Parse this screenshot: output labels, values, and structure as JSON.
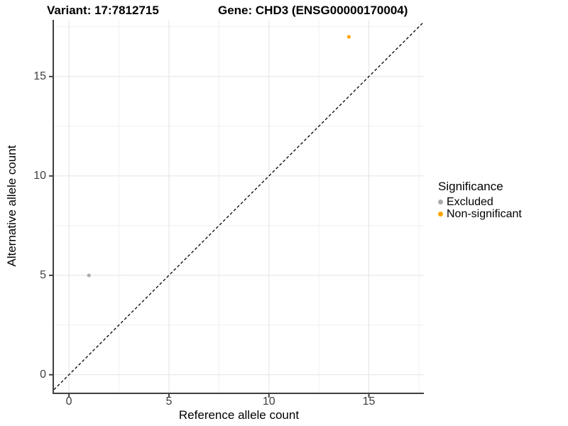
{
  "chart_data": {
    "type": "scatter",
    "title_left": "Variant: 17:7812715",
    "title_right": "Gene: CHD3 (ENSG00000170004)",
    "xlabel": "Reference allele count",
    "ylabel": "Alternative allele count",
    "xlim": [
      -0.75,
      17.75
    ],
    "ylim": [
      -0.9,
      17.85
    ],
    "x_ticks": [
      0,
      5,
      10,
      15
    ],
    "y_ticks": [
      0,
      5,
      10,
      15
    ],
    "x_minor_ticks": [
      2.5,
      7.5,
      12.5,
      17.5
    ],
    "y_minor_ticks": [
      2.5,
      7.5,
      12.5,
      17.5
    ],
    "grid": "major+minor",
    "identity_line": {
      "equation": "y = x",
      "style": "dashed",
      "color": "#000000"
    },
    "series": [
      {
        "name": "Excluded",
        "color": "#ACACAC",
        "points": [
          [
            1,
            5
          ]
        ]
      },
      {
        "name": "Non-significant",
        "color": "#FFA500",
        "points": [
          [
            14,
            17
          ]
        ]
      }
    ],
    "legend": {
      "title": "Significance",
      "position": "right"
    }
  },
  "colors": {
    "grid_major": "#E3E3E3",
    "grid_minor": "#F0F0F0",
    "axis_line": "#3F3F3F",
    "tick_text": "#404040"
  }
}
